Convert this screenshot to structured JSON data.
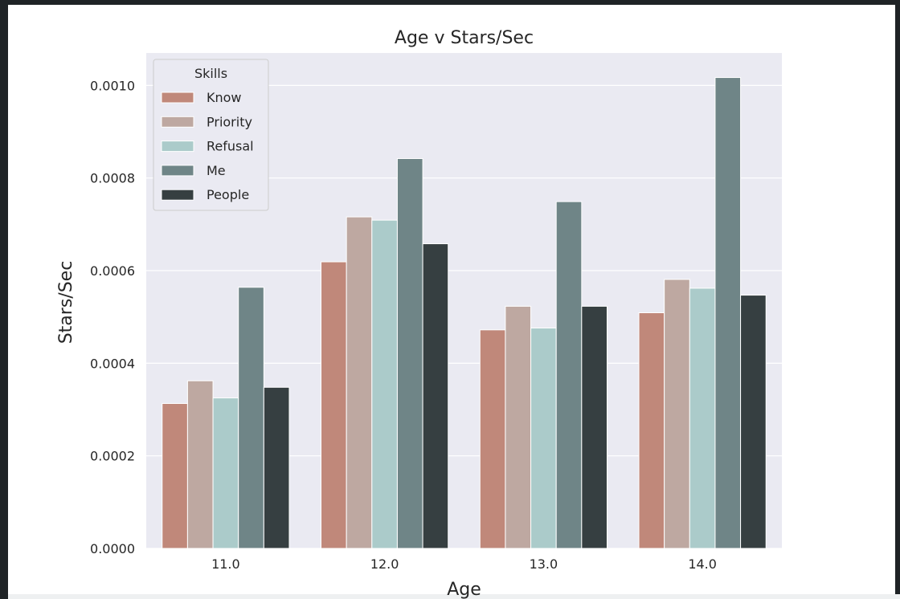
{
  "chart_data": {
    "type": "bar",
    "title": "Age v Stars/Sec",
    "xlabel": "Age",
    "ylabel": "Stars/Sec",
    "categories": [
      "11.0",
      "12.0",
      "13.0",
      "14.0"
    ],
    "ylim": [
      0,
      0.00107
    ],
    "yticks": [
      "0.0000",
      "0.0002",
      "0.0004",
      "0.0006",
      "0.0008",
      "0.0010"
    ],
    "ytick_values": [
      0,
      0.0002,
      0.0004,
      0.0006,
      0.0008,
      0.001
    ],
    "grid": true,
    "legend": {
      "title": "Skills",
      "placement": "top-left"
    },
    "series": [
      {
        "name": "Know",
        "color": "#c0887a",
        "values": [
          0.000313,
          0.000619,
          0.000472,
          0.000509
        ]
      },
      {
        "name": "Priority",
        "color": "#bea8a1",
        "values": [
          0.000362,
          0.000716,
          0.000523,
          0.000581
        ]
      },
      {
        "name": "Refusal",
        "color": "#abcbca",
        "values": [
          0.000325,
          0.000709,
          0.000476,
          0.000562
        ]
      },
      {
        "name": "Me",
        "color": "#6f8587",
        "values": [
          0.000564,
          0.000842,
          0.000749,
          0.001017
        ]
      },
      {
        "name": "People",
        "color": "#363f41",
        "values": [
          0.000348,
          0.000658,
          0.000523,
          0.000547
        ]
      }
    ]
  }
}
